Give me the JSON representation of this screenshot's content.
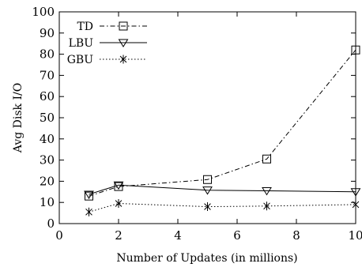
{
  "chart_data": {
    "type": "line",
    "title": "",
    "xlabel": "Number of Updates (in millions)",
    "ylabel": "Avg Disk I/O",
    "xlim": [
      0,
      10
    ],
    "ylim": [
      0,
      100
    ],
    "x_ticks": [
      0,
      2,
      4,
      6,
      8,
      10
    ],
    "y_ticks": [
      0,
      10,
      20,
      30,
      40,
      50,
      60,
      70,
      80,
      90,
      100
    ],
    "grid": false,
    "legend_position": "top-left",
    "series": [
      {
        "name": "TD",
        "marker": "square",
        "line_style": "dash-dot",
        "x": [
          1,
          2,
          5,
          7,
          10
        ],
        "y": [
          13,
          17.5,
          20.8,
          30.5,
          82
        ]
      },
      {
        "name": "LBU",
        "marker": "triangle",
        "line_style": "solid",
        "x": [
          1,
          2,
          5,
          7,
          10
        ],
        "y": [
          13.8,
          18.2,
          15.8,
          15.5,
          15
        ]
      },
      {
        "name": "GBU",
        "marker": "asterisk",
        "line_style": "dotted",
        "x": [
          1,
          2,
          5,
          7,
          10
        ],
        "y": [
          5.5,
          9.5,
          8,
          8.3,
          9
        ]
      }
    ]
  }
}
